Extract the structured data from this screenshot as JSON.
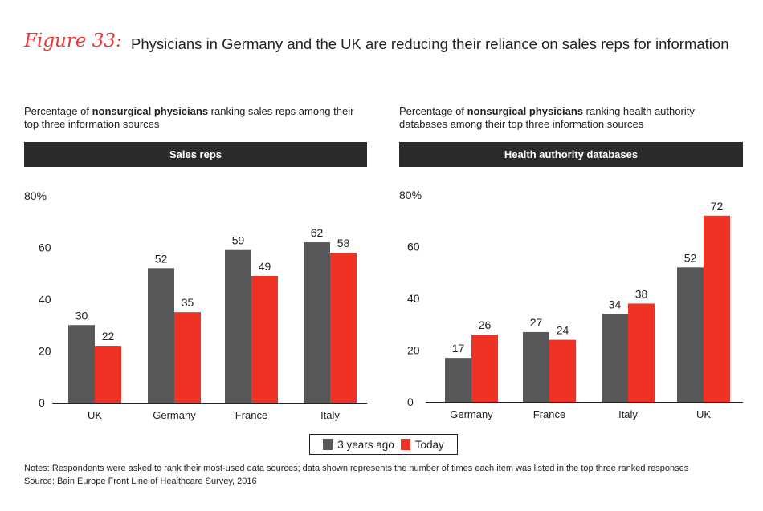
{
  "figure_label": "Figure 33:",
  "title": "Physicians in Germany and the UK are reducing their reliance on sales reps for information",
  "legend": {
    "items": [
      {
        "label": "3 years ago",
        "color": "#58585a"
      },
      {
        "label": "Today",
        "color": "#ee3224"
      }
    ]
  },
  "notes": "Notes: Respondents were asked to rank their most-used data sources; data shown represents the number of times each item was listed in the top three ranked responses",
  "source": "Source: Bain Europe Front Line of Healthcare Survey, 2016",
  "chart_data": [
    {
      "type": "bar",
      "subtitle_pre": "Percentage of ",
      "subtitle_bold": "nonsurgical physicians",
      "subtitle_post": " ranking sales reps among their top three information sources",
      "title": "Sales reps",
      "categories": [
        "UK",
        "Germany",
        "France",
        "Italy"
      ],
      "series": [
        {
          "name": "3 years ago",
          "values": [
            30,
            52,
            59,
            62
          ]
        },
        {
          "name": "Today",
          "values": [
            22,
            35,
            49,
            58
          ]
        }
      ],
      "ylim": [
        0,
        80
      ],
      "yticks": [
        "0",
        "20",
        "40",
        "60",
        "80%"
      ]
    },
    {
      "type": "bar",
      "subtitle_pre": "Percentage of ",
      "subtitle_bold": "nonsurgical physicians",
      "subtitle_post": " ranking health authority databases among their top three information sources",
      "title": "Health authority databases",
      "categories": [
        "Germany",
        "France",
        "Italy",
        "UK"
      ],
      "series": [
        {
          "name": "3 years ago",
          "values": [
            17,
            27,
            34,
            52
          ]
        },
        {
          "name": "Today",
          "values": [
            26,
            24,
            38,
            72
          ]
        }
      ],
      "ylim": [
        0,
        80
      ],
      "yticks": [
        "0",
        "20",
        "40",
        "60",
        "80%"
      ]
    }
  ]
}
